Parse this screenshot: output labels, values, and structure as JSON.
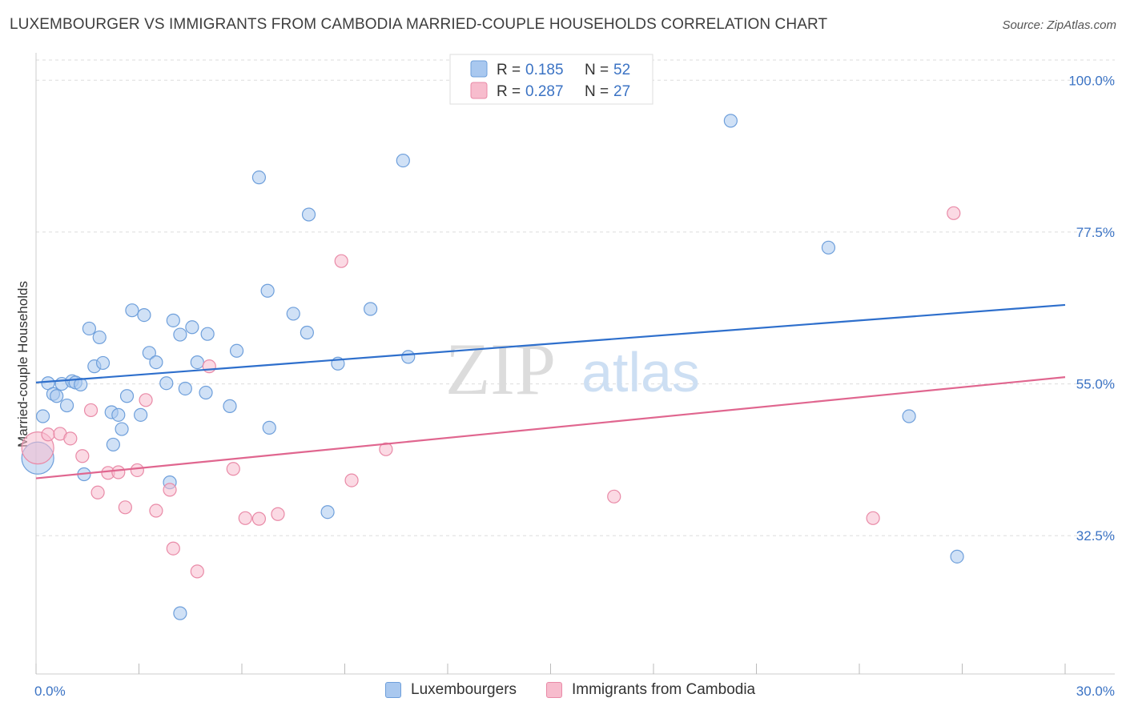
{
  "title": "LUXEMBOURGER VS IMMIGRANTS FROM CAMBODIA MARRIED-COUPLE HOUSEHOLDS CORRELATION CHART",
  "source": "Source: ZipAtlas.com",
  "watermark": {
    "zip": "ZIP",
    "atlas": "atlas"
  },
  "colors": {
    "blue_fill": "#a9c8ef",
    "blue_stroke": "#6e9fdb",
    "blue_line": "#2e6fcc",
    "pink_fill": "#f7bccd",
    "pink_stroke": "#e98aa7",
    "pink_line": "#e0668f",
    "tick_text": "#3b73c4",
    "grid": "#dddddd"
  },
  "legend": {
    "series": [
      {
        "r_label": "R =",
        "r_value": "0.185",
        "n_label": "N =",
        "n_value": "52"
      },
      {
        "r_label": "R =",
        "r_value": "0.287",
        "n_label": "N =",
        "n_value": "27"
      }
    ]
  },
  "bottom_legend": {
    "items": [
      "Luxembourgers",
      "Immigrants from Cambodia"
    ]
  },
  "chart_data": {
    "type": "scatter",
    "xlabel": "",
    "ylabel": "Married-couple Households",
    "xlim": [
      0,
      30
    ],
    "ylim": [
      12,
      103
    ],
    "x_tick_labels": [
      "0.0%",
      "30.0%"
    ],
    "y_ticks": [
      32.5,
      55.0,
      77.5,
      100.0
    ],
    "y_tick_labels": [
      "32.5%",
      "55.0%",
      "77.5%",
      "100.0%"
    ],
    "x_minor_ticks": [
      0,
      3,
      6,
      9,
      12,
      15,
      18,
      21,
      24,
      27,
      30
    ],
    "grid": true,
    "series": [
      {
        "name": "Luxembourgers",
        "r": 0.185,
        "n": 52,
        "trend": {
          "x": [
            0,
            30
          ],
          "y": [
            55.2,
            66.7
          ]
        },
        "points": [
          {
            "x": 0.05,
            "y": 44.0,
            "big": true
          },
          {
            "x": 0.2,
            "y": 50.2
          },
          {
            "x": 0.35,
            "y": 55.1
          },
          {
            "x": 0.5,
            "y": 53.5
          },
          {
            "x": 0.6,
            "y": 53.2
          },
          {
            "x": 0.75,
            "y": 55.0
          },
          {
            "x": 0.9,
            "y": 51.8
          },
          {
            "x": 1.05,
            "y": 55.4
          },
          {
            "x": 1.15,
            "y": 55.2
          },
          {
            "x": 1.3,
            "y": 54.9
          },
          {
            "x": 1.4,
            "y": 41.6
          },
          {
            "x": 1.55,
            "y": 63.2
          },
          {
            "x": 1.7,
            "y": 57.6
          },
          {
            "x": 1.85,
            "y": 61.9
          },
          {
            "x": 1.95,
            "y": 58.1
          },
          {
            "x": 2.2,
            "y": 50.8
          },
          {
            "x": 2.25,
            "y": 46.0
          },
          {
            "x": 2.4,
            "y": 50.4
          },
          {
            "x": 2.5,
            "y": 48.3
          },
          {
            "x": 2.65,
            "y": 53.2
          },
          {
            "x": 2.8,
            "y": 65.9
          },
          {
            "x": 3.05,
            "y": 50.4
          },
          {
            "x": 3.15,
            "y": 65.2
          },
          {
            "x": 3.3,
            "y": 59.6
          },
          {
            "x": 3.5,
            "y": 58.2
          },
          {
            "x": 3.8,
            "y": 55.1
          },
          {
            "x": 3.9,
            "y": 40.4
          },
          {
            "x": 4.0,
            "y": 64.4
          },
          {
            "x": 4.2,
            "y": 62.3
          },
          {
            "x": 4.35,
            "y": 54.3
          },
          {
            "x": 4.55,
            "y": 63.4
          },
          {
            "x": 4.7,
            "y": 58.2
          },
          {
            "x": 4.95,
            "y": 53.7
          },
          {
            "x": 5.0,
            "y": 62.4
          },
          {
            "x": 5.65,
            "y": 51.7
          },
          {
            "x": 5.85,
            "y": 59.9
          },
          {
            "x": 6.5,
            "y": 85.6
          },
          {
            "x": 6.75,
            "y": 68.8
          },
          {
            "x": 6.8,
            "y": 48.5
          },
          {
            "x": 7.5,
            "y": 65.4
          },
          {
            "x": 7.9,
            "y": 62.6
          },
          {
            "x": 7.95,
            "y": 80.1
          },
          {
            "x": 8.5,
            "y": 36.0
          },
          {
            "x": 8.8,
            "y": 58.0
          },
          {
            "x": 9.75,
            "y": 66.1
          },
          {
            "x": 10.7,
            "y": 88.1
          },
          {
            "x": 10.85,
            "y": 59.0
          },
          {
            "x": 20.25,
            "y": 94.0
          },
          {
            "x": 23.1,
            "y": 75.2
          },
          {
            "x": 25.45,
            "y": 50.2
          },
          {
            "x": 26.85,
            "y": 29.4
          },
          {
            "x": 4.2,
            "y": 21.0
          }
        ]
      },
      {
        "name": "Immigrants from Cambodia",
        "r": 0.287,
        "n": 27,
        "trend": {
          "x": [
            0,
            30
          ],
          "y": [
            41.0,
            56.0
          ]
        },
        "points": [
          {
            "x": 0.05,
            "y": 45.5,
            "big": true
          },
          {
            "x": 0.35,
            "y": 47.5
          },
          {
            "x": 0.7,
            "y": 47.6
          },
          {
            "x": 1.0,
            "y": 46.9
          },
          {
            "x": 1.35,
            "y": 44.3
          },
          {
            "x": 1.6,
            "y": 51.1
          },
          {
            "x": 1.8,
            "y": 38.9
          },
          {
            "x": 2.1,
            "y": 41.8
          },
          {
            "x": 2.4,
            "y": 41.9
          },
          {
            "x": 2.6,
            "y": 36.7
          },
          {
            "x": 2.95,
            "y": 42.2
          },
          {
            "x": 3.2,
            "y": 52.6
          },
          {
            "x": 3.5,
            "y": 36.2
          },
          {
            "x": 3.9,
            "y": 39.3
          },
          {
            "x": 4.0,
            "y": 30.6
          },
          {
            "x": 4.7,
            "y": 27.2
          },
          {
            "x": 5.05,
            "y": 57.6
          },
          {
            "x": 5.75,
            "y": 42.4
          },
          {
            "x": 6.1,
            "y": 35.1
          },
          {
            "x": 6.5,
            "y": 35.0
          },
          {
            "x": 7.05,
            "y": 35.7
          },
          {
            "x": 8.9,
            "y": 73.2
          },
          {
            "x": 9.2,
            "y": 40.7
          },
          {
            "x": 10.2,
            "y": 45.3
          },
          {
            "x": 16.85,
            "y": 38.3
          },
          {
            "x": 24.4,
            "y": 35.1
          },
          {
            "x": 26.75,
            "y": 80.3
          }
        ]
      }
    ]
  }
}
